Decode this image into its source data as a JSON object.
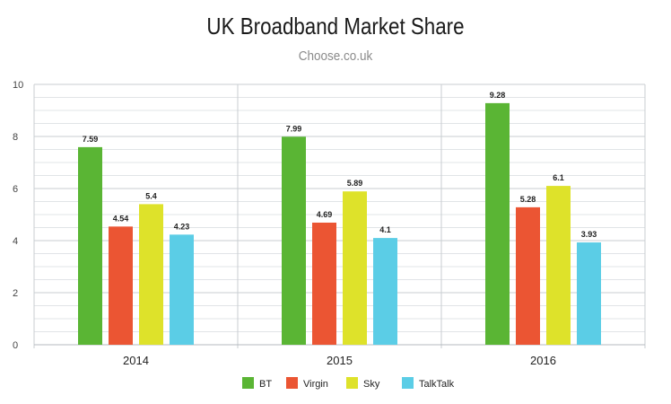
{
  "chart_data": {
    "type": "bar",
    "title": "UK Broadband Market Share",
    "subtitle": "Choose.co.uk",
    "xlabel": "",
    "ylabel": "",
    "categories": [
      "2014",
      "2015",
      "2016"
    ],
    "series": [
      {
        "name": "BT",
        "color": "#5ab534",
        "values": [
          7.59,
          7.99,
          9.28
        ],
        "labels": [
          "7.59",
          "7.99",
          "9.28"
        ]
      },
      {
        "name": "Virgin",
        "color": "#eb5533",
        "values": [
          4.54,
          4.69,
          5.28
        ],
        "labels": [
          "4.54",
          "4.69",
          "5.28"
        ]
      },
      {
        "name": "Sky",
        "color": "#dee22a",
        "values": [
          5.4,
          5.89,
          6.1
        ],
        "labels": [
          "5.4",
          "5.89",
          "6.1"
        ]
      },
      {
        "name": "TalkTalk",
        "color": "#5bcde6",
        "values": [
          4.23,
          4.1,
          3.93
        ],
        "labels": [
          "4.23",
          "4.1",
          "3.93"
        ]
      }
    ],
    "ylim": [
      0,
      10
    ],
    "yticks": [
      "0",
      "2",
      "4",
      "6",
      "8",
      "10"
    ],
    "grid": true,
    "legend_position": "bottom"
  }
}
